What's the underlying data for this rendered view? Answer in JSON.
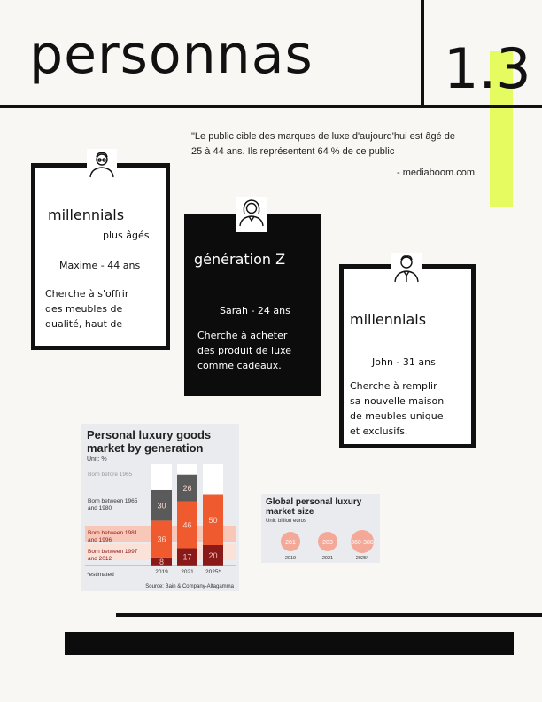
{
  "header": {
    "title": "personnas",
    "section_number": "1.3"
  },
  "quote": {
    "text": "\"Le public cible des marques de luxe d'aujourd'hui est âgé de 25 à 44 ans. Ils représentent 64 % de ce public",
    "source": "- mediaboom.com"
  },
  "personas": [
    {
      "segment": "millennials",
      "segment_sub": "plus âgés",
      "person": "Maxime - 44 ans",
      "description_lines": [
        "Cherche à s'offrir",
        "des meubles de",
        "qualité, haut de"
      ],
      "icon": "older-man-icon"
    },
    {
      "segment": "génération Z",
      "person": "Sarah - 24 ans",
      "description_lines": [
        "Cherche à acheter",
        "des produit de luxe",
        "comme cadeaux."
      ],
      "icon": "young-woman-icon"
    },
    {
      "segment": "millennials",
      "person": "John - 31 ans",
      "description_lines": [
        "Cherche à remplir",
        "sa nouvelle maison",
        "de meubles unique",
        "et exclusifs."
      ],
      "icon": "man-suit-icon"
    }
  ],
  "colors": {
    "accent": "#e6fb5f",
    "dark": "#0c0c0c",
    "orange": "#ef5a2f",
    "maroon": "#8a1a1a",
    "grey": "#5a5a5a",
    "pink": "#f9c7b8"
  },
  "chart_data": [
    {
      "type": "bar",
      "title": "Personal luxury goods market by generation",
      "unit": "Unit: %",
      "categories": [
        "2019",
        "2021",
        "2025*"
      ],
      "series": [
        {
          "name": "Born before 1965",
          "values": [
            null,
            null,
            null
          ]
        },
        {
          "name": "Born between 1965 and 1980",
          "values": [
            30,
            26,
            null
          ]
        },
        {
          "name": "Born between 1981 and 1996",
          "values": [
            36,
            46,
            50
          ]
        },
        {
          "name": "Born between 1997 and 2012",
          "values": [
            8,
            17,
            20
          ]
        }
      ],
      "footnote": "*estimated",
      "source": "Source: Bain & Company-Altagamma"
    },
    {
      "type": "bubble",
      "title": "Global personal luxury market size",
      "unit": "Unit: billion euros",
      "categories": [
        "2019",
        "2021",
        "2025*"
      ],
      "values": [
        "281",
        "283",
        "360-380"
      ]
    }
  ]
}
